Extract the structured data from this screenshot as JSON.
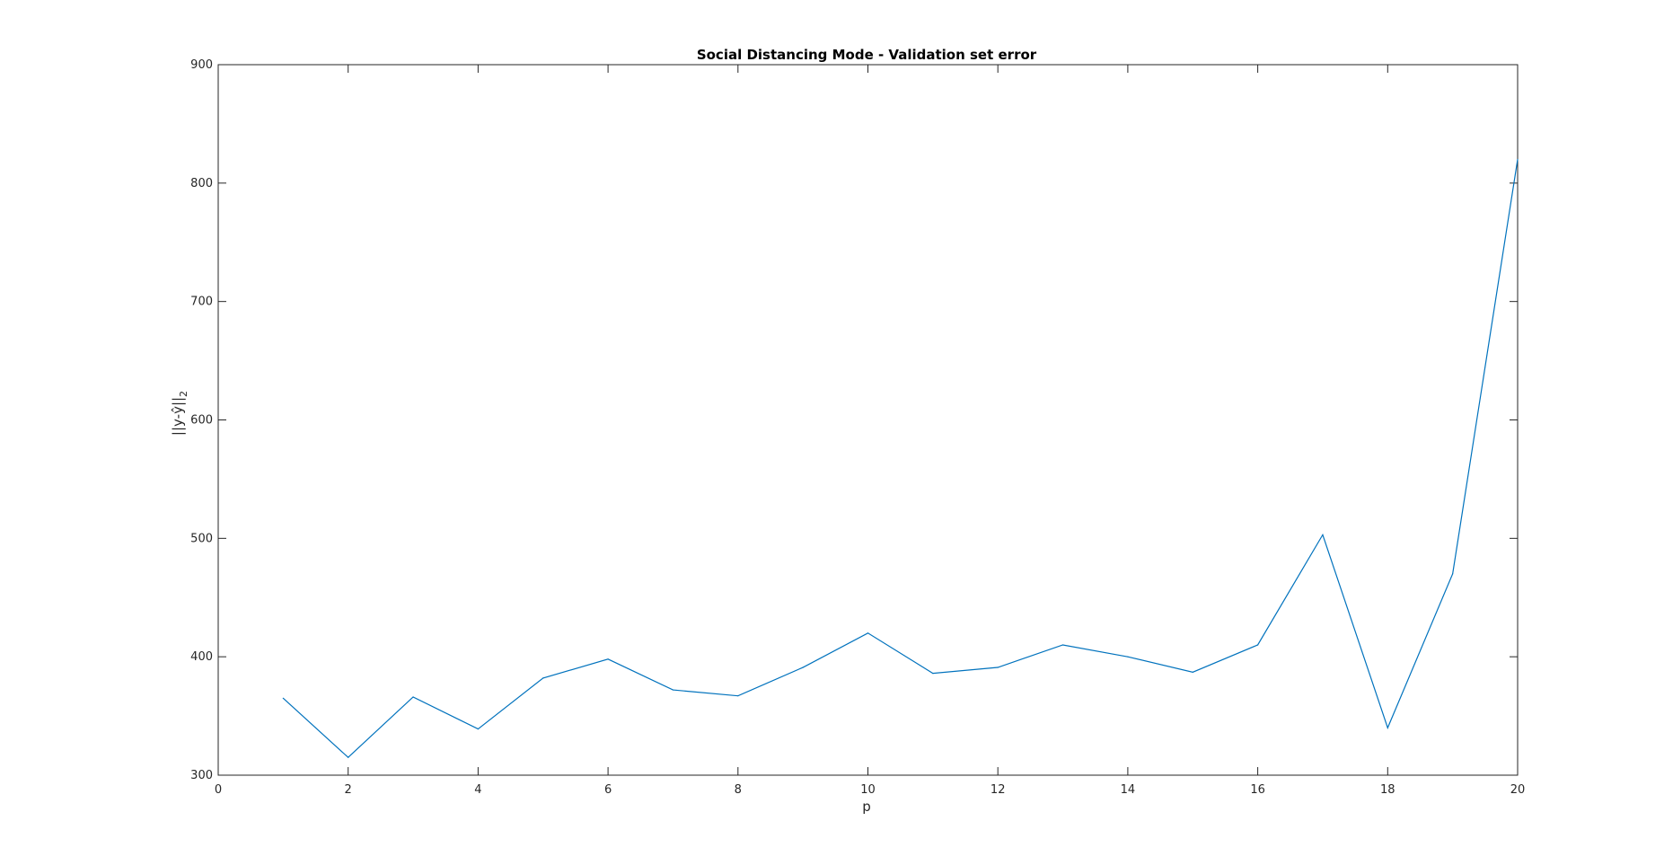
{
  "chart_data": {
    "type": "line",
    "title": "Social Distancing Mode - Validation set error",
    "xlabel": "p",
    "ylabel_main": "||y-ŷ||",
    "ylabel_sub": "2",
    "xlim": [
      0,
      20
    ],
    "ylim": [
      300,
      900
    ],
    "xticks": [
      "0",
      "2",
      "4",
      "6",
      "8",
      "10",
      "12",
      "14",
      "16",
      "18",
      "20"
    ],
    "yticks": [
      "300",
      "400",
      "500",
      "600",
      "700",
      "800",
      "900"
    ],
    "grid": false,
    "series_color": "#0072BD",
    "x": [
      1,
      2,
      3,
      4,
      5,
      6,
      7,
      8,
      9,
      10,
      11,
      12,
      13,
      14,
      15,
      16,
      17,
      18,
      19,
      20
    ],
    "y": [
      365,
      315,
      366,
      339,
      382,
      398,
      372,
      367,
      391,
      420,
      386,
      391,
      410,
      400,
      387,
      410,
      503,
      340,
      470,
      820
    ]
  }
}
